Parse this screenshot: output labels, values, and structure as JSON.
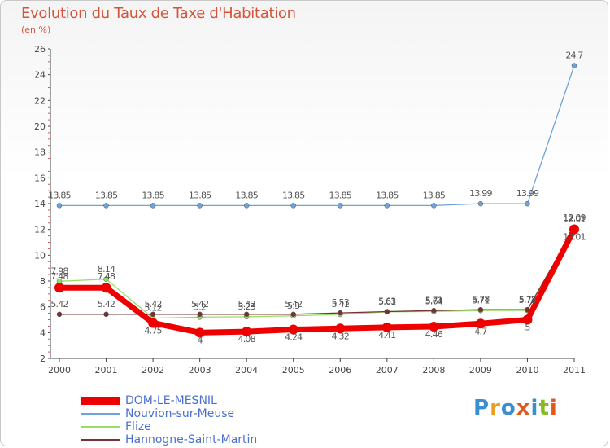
{
  "chart_data": {
    "type": "line",
    "title": "Evolution du Taux de Taxe d'Habitation",
    "subtitle": "(en %)",
    "xlabel": "",
    "ylabel": "(en %)",
    "ylim": [
      2,
      26
    ],
    "yticks": [
      2,
      4,
      6,
      8,
      10,
      12,
      14,
      16,
      18,
      20,
      22,
      24,
      26
    ],
    "categories": [
      "2000",
      "2001",
      "2002",
      "2003",
      "2004",
      "2005",
      "2006",
      "2007",
      "2008",
      "2009",
      "2010",
      "2011"
    ],
    "series": [
      {
        "name": "DOM-LE-MESNIL",
        "color": "#ee0000",
        "values": [
          7.48,
          7.48,
          4.75,
          4,
          4.08,
          4.24,
          4.32,
          4.41,
          4.46,
          4.7,
          5,
          12.01
        ],
        "labels": [
          "7.48",
          "7.48",
          "4.75",
          "4",
          "4.08",
          "4.24",
          "4.32",
          "4.41",
          "4.46",
          "4.7",
          "5",
          "12.01"
        ]
      },
      {
        "name": "Nouvion-sur-Meuse",
        "color": "#6fa3d8",
        "values": [
          13.85,
          13.85,
          13.85,
          13.85,
          13.85,
          13.85,
          13.85,
          13.85,
          13.85,
          13.99,
          13.99,
          24.7
        ],
        "labels": [
          "13.85",
          "13.85",
          "13.85",
          "13.85",
          "13.85",
          "13.85",
          "13.85",
          "13.85",
          "13.85",
          "13.99",
          "13.99",
          "24.7"
        ]
      },
      {
        "name": "Flize",
        "color": "#99dd66",
        "values": [
          7.98,
          8.14,
          5.12,
          5.2,
          5.23,
          5.3,
          5.41,
          5.61,
          5.64,
          5.71,
          5.72,
          12.01
        ],
        "labels": [
          "7.98",
          "8.14",
          "5.12",
          "5.2",
          "5.23",
          "5.3",
          "5.41",
          "5.61",
          "5.64",
          "5.71",
          "5.72",
          "12.01"
        ]
      },
      {
        "name": "Hannogne-Saint-Martin",
        "color": "#773333",
        "values": [
          5.42,
          5.42,
          5.42,
          5.42,
          5.42,
          5.42,
          5.53,
          5.63,
          5.71,
          5.78,
          5.78,
          12.09
        ],
        "labels": [
          "5.42",
          "5.42",
          "5.42",
          "5.42",
          "5.42",
          "5.42",
          "5.53",
          "5.63",
          "5.71",
          "5.78",
          "5.78",
          "12.09"
        ]
      }
    ],
    "grid": false,
    "legend": "bottom-left"
  },
  "logo": {
    "text": "Proxiti",
    "colors": [
      "#3a8fd0",
      "#e8a020",
      "#3a8fd0",
      "#e05a20",
      "#3a8fd0",
      "#88bb22",
      "#e05a20"
    ]
  }
}
